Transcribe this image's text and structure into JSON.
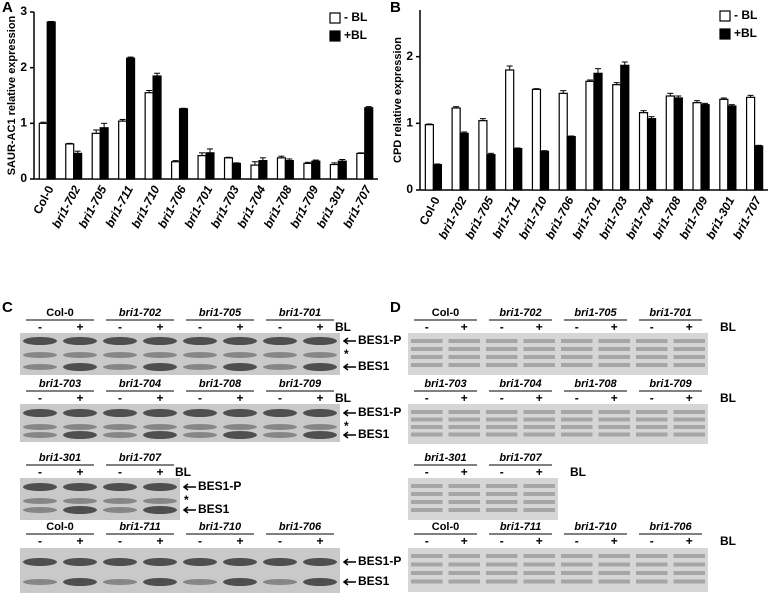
{
  "chart_data": [
    {
      "type": "bar",
      "panel": "A",
      "y_label": "SAUR-AC1 relative expression",
      "categories": [
        "Col-0",
        "bri1-702",
        "bri1-705",
        "bri1-711",
        "bri1-710",
        "bri1-706",
        "bri1-701",
        "bri1-703",
        "bri1-704",
        "bri1-708",
        "bri1-709",
        "bri1-301",
        "bri1-707"
      ],
      "series": [
        {
          "name": "- BL",
          "color": "#ffffff",
          "values": [
            1.0,
            0.63,
            0.82,
            1.04,
            1.55,
            0.31,
            0.42,
            0.38,
            0.25,
            0.38,
            0.28,
            0.26,
            0.46
          ],
          "errors": [
            0.02,
            0.01,
            0.06,
            0.03,
            0.04,
            0.02,
            0.05,
            0.01,
            0.06,
            0.03,
            0.02,
            0.03,
            0.01
          ]
        },
        {
          "name": "+BL",
          "color": "#000000",
          "values": [
            2.82,
            0.46,
            0.92,
            2.17,
            1.85,
            1.26,
            0.47,
            0.28,
            0.33,
            0.33,
            0.32,
            0.32,
            1.28
          ],
          "errors": [
            0.01,
            0.04,
            0.08,
            0.02,
            0.05,
            0.01,
            0.07,
            0.01,
            0.05,
            0.03,
            0.02,
            0.03,
            0.02
          ]
        }
      ],
      "ylim": [
        0,
        3
      ],
      "yticks": [
        0,
        1,
        2,
        3
      ]
    },
    {
      "type": "bar",
      "panel": "B",
      "y_label": "CPD relative expression",
      "categories": [
        "Col-0",
        "bri1-702",
        "bri1-705",
        "bri1-711",
        "bri1-710",
        "bri1-706",
        "bri1-701",
        "bri1-703",
        "bri1-704",
        "bri1-708",
        "bri1-709",
        "bri1-301",
        "bri1-707"
      ],
      "series": [
        {
          "name": "- BL",
          "color": "#ffffff",
          "values": [
            0.98,
            1.23,
            1.04,
            1.8,
            1.51,
            1.45,
            1.63,
            1.58,
            1.16,
            1.41,
            1.31,
            1.36,
            1.39
          ],
          "errors": [
            0.01,
            0.02,
            0.03,
            0.06,
            0.01,
            0.04,
            0.02,
            0.03,
            0.03,
            0.04,
            0.03,
            0.02,
            0.03
          ]
        },
        {
          "name": "+BL",
          "color": "#000000",
          "values": [
            0.38,
            0.85,
            0.53,
            0.62,
            0.58,
            0.8,
            1.75,
            1.87,
            1.07,
            1.38,
            1.28,
            1.26,
            0.66
          ],
          "errors": [
            0.01,
            0.02,
            0.02,
            0.01,
            0.01,
            0.01,
            0.07,
            0.05,
            0.03,
            0.03,
            0.02,
            0.02,
            0.01
          ]
        }
      ],
      "ylim": [
        0,
        2.7
      ],
      "yticks": [
        0,
        1,
        2
      ]
    }
  ],
  "signs": [
    "-",
    "+"
  ],
  "blots": [
    {
      "panel": "C",
      "rows": [
        {
          "groups": [
            "Col-0",
            "bri1-702",
            "bri1-705",
            "bri1-701"
          ],
          "treatment_label": "BL",
          "band_labels": [
            "BES1-P",
            "*",
            "BES1"
          ]
        },
        {
          "groups": [
            "bri1-703",
            "bri1-704",
            "bri1-708",
            "bri1-709"
          ],
          "treatment_label": "BL",
          "band_labels": [
            "BES1-P",
            "*",
            "BES1"
          ]
        },
        {
          "groups": [
            "bri1-301",
            "bri1-707"
          ],
          "treatment_label": "BL",
          "band_labels": [
            "BES1-P",
            "*",
            "BES1"
          ]
        },
        {
          "groups": [
            "Col-0",
            "bri1-711",
            "bri1-710",
            "bri1-706"
          ],
          "band_labels": [
            "BES1-P",
            "BES1"
          ]
        }
      ]
    },
    {
      "panel": "D",
      "rows": [
        {
          "groups": [
            "Col-0",
            "bri1-702",
            "bri1-705",
            "bri1-701"
          ],
          "treatment_label": "BL"
        },
        {
          "groups": [
            "bri1-703",
            "bri1-704",
            "bri1-708",
            "bri1-709"
          ],
          "treatment_label": "BL"
        },
        {
          "groups": [
            "bri1-301",
            "bri1-707"
          ],
          "treatment_label": "BL"
        },
        {
          "groups": [
            "Col-0",
            "bri1-711",
            "bri1-710",
            "bri1-706"
          ],
          "treatment_label": "BL"
        }
      ]
    }
  ]
}
